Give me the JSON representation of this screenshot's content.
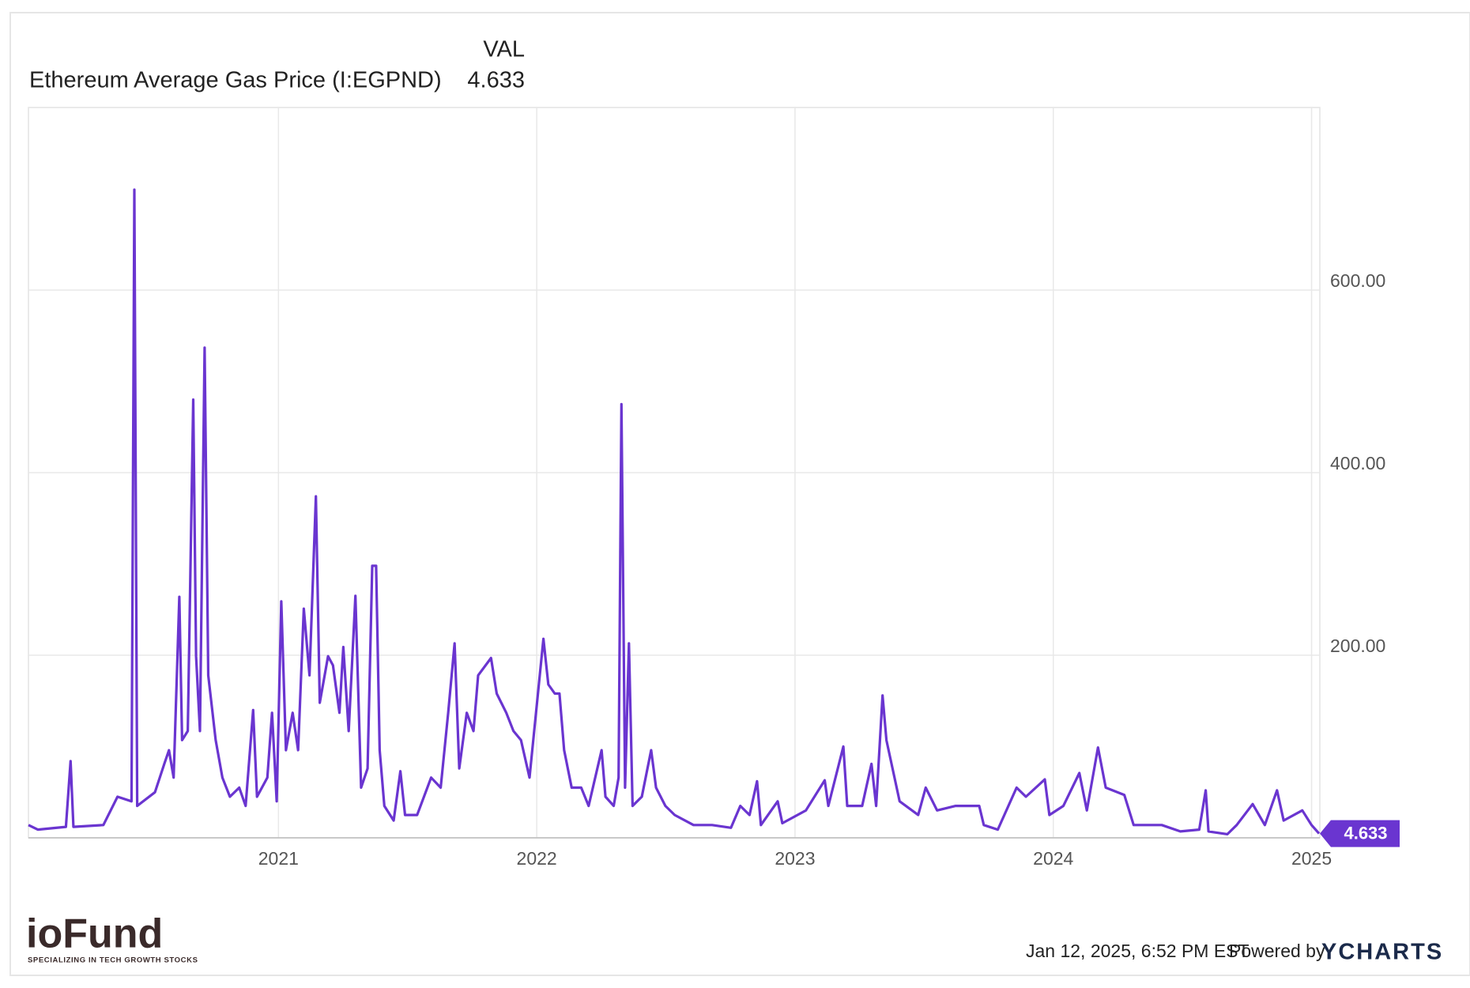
{
  "chart_data": {
    "type": "line",
    "legend_header": "VAL",
    "series_name": "Ethereum Average Gas Price (I:EGPND)",
    "current_value": 4.633,
    "color": "#6a35d0",
    "grid": true,
    "xlim": [
      2020.032,
      2025.032
    ],
    "xticks": [
      2021,
      2022,
      2023,
      2024,
      2025
    ],
    "ylim": [
      0,
      800
    ],
    "yticks": [
      {
        "value": 200,
        "label": "200.00"
      },
      {
        "value": 400,
        "label": "400.00"
      },
      {
        "value": 600,
        "label": "600.00"
      }
    ],
    "x": [
      2020.032,
      2020.068,
      2020.177,
      2020.195,
      2020.206,
      2020.322,
      2020.377,
      2020.431,
      2020.442,
      2020.453,
      2020.522,
      2020.558,
      2020.576,
      2020.594,
      2020.616,
      2020.627,
      2020.649,
      2020.67,
      2020.681,
      2020.696,
      2020.714,
      2020.728,
      2020.757,
      2020.783,
      2020.812,
      2020.848,
      2020.873,
      2020.902,
      2020.917,
      2020.957,
      2020.975,
      2020.993,
      2021.011,
      2021.029,
      2021.055,
      2021.076,
      2021.098,
      2021.12,
      2021.145,
      2021.16,
      2021.192,
      2021.211,
      2021.236,
      2021.251,
      2021.272,
      2021.298,
      2021.32,
      2021.345,
      2021.363,
      2021.378,
      2021.392,
      2021.41,
      2021.446,
      2021.472,
      2021.49,
      2021.537,
      2021.591,
      2021.628,
      2021.657,
      2021.682,
      2021.7,
      2021.729,
      2021.755,
      2021.773,
      2021.823,
      2021.845,
      2021.882,
      2021.91,
      2021.939,
      2021.972,
      2021.99,
      2022.026,
      2022.045,
      2022.07,
      2022.088,
      2022.106,
      2022.135,
      2022.172,
      2022.201,
      2022.251,
      2022.266,
      2022.298,
      2022.317,
      2022.328,
      2022.342,
      2022.357,
      2022.371,
      2022.407,
      2022.443,
      2022.462,
      2022.498,
      2022.534,
      2022.607,
      2022.679,
      2022.752,
      2022.788,
      2022.824,
      2022.853,
      2022.868,
      2022.933,
      2022.951,
      2023.042,
      2023.115,
      2023.129,
      2023.187,
      2023.202,
      2023.26,
      2023.296,
      2023.314,
      2023.339,
      2023.354,
      2023.405,
      2023.477,
      2023.506,
      2023.55,
      2023.622,
      2023.713,
      2023.731,
      2023.785,
      2023.858,
      2023.894,
      2023.967,
      2023.985,
      2024.039,
      2024.101,
      2024.13,
      2024.173,
      2024.203,
      2024.275,
      2024.311,
      2024.42,
      2024.492,
      2024.565,
      2024.59,
      2024.601,
      2024.674,
      2024.71,
      2024.772,
      2024.819,
      2024.866,
      2024.892,
      2024.964,
      2025.0,
      2025.029
    ],
    "values": [
      14,
      9,
      12,
      84,
      12,
      14,
      45,
      40,
      710,
      35,
      50,
      81,
      96,
      66,
      264,
      107,
      117,
      480,
      199,
      117,
      537,
      178,
      107,
      66,
      45,
      55,
      35,
      140,
      45,
      66,
      137,
      40,
      259,
      96,
      137,
      96,
      251,
      178,
      374,
      148,
      199,
      189,
      137,
      209,
      117,
      265,
      55,
      76,
      298,
      298,
      96,
      35,
      19,
      73,
      25,
      25,
      66,
      55,
      137,
      213,
      76,
      137,
      117,
      178,
      197,
      158,
      137,
      117,
      107,
      66,
      117,
      218,
      168,
      158,
      158,
      96,
      55,
      55,
      35,
      96,
      45,
      35,
      66,
      475,
      55,
      213,
      35,
      45,
      96,
      55,
      35,
      25,
      14,
      14,
      11,
      35,
      25,
      62,
      14,
      40,
      16,
      30,
      63,
      35,
      100,
      35,
      35,
      81,
      35,
      156,
      107,
      40,
      25,
      55,
      30,
      35,
      35,
      14,
      9,
      55,
      45,
      64,
      25,
      35,
      71,
      30,
      99,
      55,
      47,
      14,
      14,
      7,
      9,
      52,
      7,
      4,
      14,
      37,
      14,
      52,
      19,
      30,
      14,
      4.633
    ]
  },
  "footer": {
    "timestamp": "Jan 12, 2025, 6:52 PM EST",
    "powered_by": "Powered by",
    "brand": "YCHARTS"
  },
  "logo": {
    "name": "ioFund",
    "tagline": "SPECIALIZING IN TECH GROWTH STOCKS"
  }
}
